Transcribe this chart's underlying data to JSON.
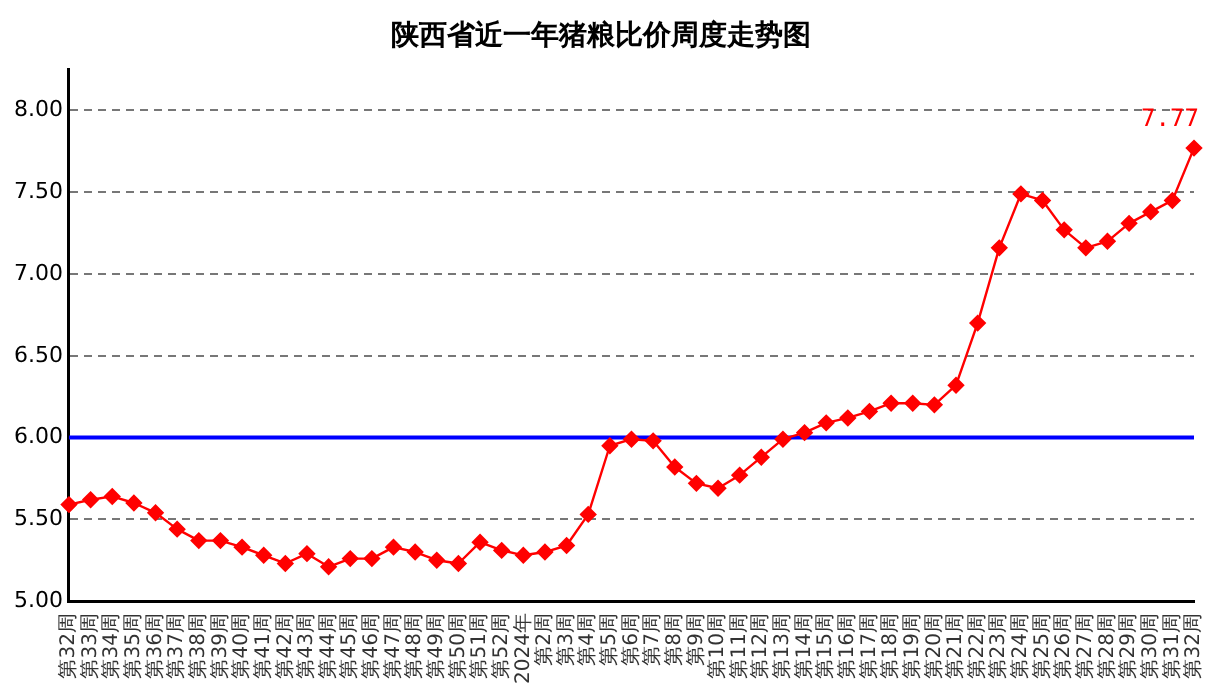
{
  "chart_data": {
    "type": "line",
    "title": "陕西省近一年猪粮比价周度走势图",
    "categories": [
      "第32周",
      "第33周",
      "第34周",
      "第35周",
      "第36周",
      "第37周",
      "第38周",
      "第39周",
      "第40周",
      "第41周",
      "第42周",
      "第43周",
      "第44周",
      "第45周",
      "第46周",
      "第47周",
      "第48周",
      "第49周",
      "第50周",
      "第51周",
      "第52周",
      "2024年",
      "第2周",
      "第3周",
      "第4周",
      "第5周",
      "第6周",
      "第7周",
      "第8周",
      "第9周",
      "第10周",
      "第11周",
      "第12周",
      "第13周",
      "第14周",
      "第15周",
      "第16周",
      "第17周",
      "第18周",
      "第19周",
      "第20周",
      "第21周",
      "第22周",
      "第23周",
      "第24周",
      "第25周",
      "第26周",
      "第27周",
      "第28周",
      "第29周",
      "第30周",
      "第31周",
      "第32周"
    ],
    "series": [
      {
        "color": "#ff0000",
        "values": [
          5.59,
          5.62,
          5.64,
          5.6,
          5.54,
          5.44,
          5.37,
          5.37,
          5.33,
          5.28,
          5.23,
          5.29,
          5.21,
          5.26,
          5.26,
          5.33,
          5.3,
          5.25,
          5.23,
          5.36,
          5.31,
          5.28,
          5.3,
          5.34,
          5.53,
          5.95,
          5.99,
          5.98,
          5.82,
          5.72,
          5.69,
          5.77,
          5.88,
          5.99,
          6.03,
          6.09,
          6.12,
          6.16,
          6.21,
          6.21,
          6.2,
          6.32,
          6.7,
          7.16,
          7.49,
          7.45,
          7.27,
          7.16,
          7.2,
          7.31,
          7.38,
          7.45,
          7.77
        ],
        "value_labels": [
          null,
          null,
          null,
          null,
          null,
          null,
          null,
          null,
          null,
          null,
          null,
          null,
          null,
          null,
          null,
          null,
          null,
          null,
          null,
          null,
          null,
          null,
          null,
          null,
          null,
          null,
          null,
          null,
          null,
          null,
          null,
          null,
          null,
          null,
          null,
          null,
          null,
          null,
          null,
          null,
          null,
          null,
          null,
          null,
          null,
          null,
          null,
          null,
          null,
          null,
          null,
          null,
          "7.77"
        ]
      }
    ],
    "ylim": [
      5,
      8.25
    ],
    "yticks": [
      {
        "value": 5,
        "label": "5.00"
      },
      {
        "value": 5.5,
        "label": "5.50"
      },
      {
        "value": 6,
        "label": "6.00"
      },
      {
        "value": 6.5,
        "label": "6.50"
      },
      {
        "value": 7,
        "label": "7.00"
      },
      {
        "value": 7.5,
        "label": "7.50"
      },
      {
        "value": 8,
        "label": "8.00"
      }
    ],
    "ref_lines": [
      {
        "axis": "y",
        "value": 6,
        "color": "#0000ff"
      }
    ],
    "grid": "y",
    "legend": false,
    "marker": "diamond",
    "line_style": "solid"
  }
}
